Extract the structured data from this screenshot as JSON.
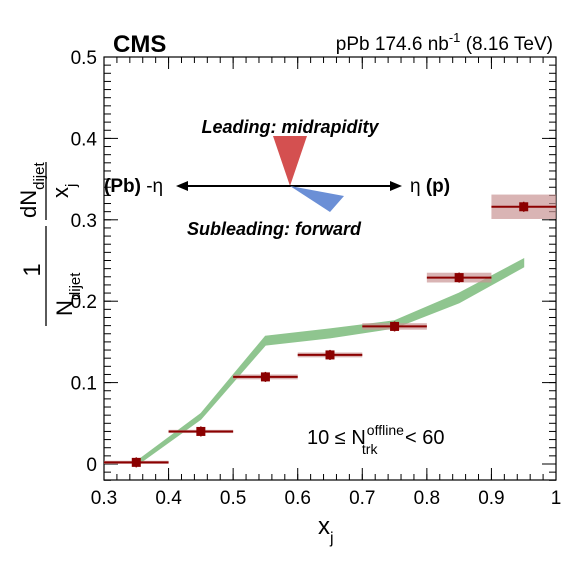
{
  "chart_data": {
    "type": "scatter",
    "experiment_label": "CMS",
    "run_label": {
      "prefix": "pPb 174.6 nb",
      "exponent": "-1",
      "suffix": "(8.16 TeV)"
    },
    "xlabel": {
      "base": "x",
      "sub": "j"
    },
    "ylabel": {
      "one": "1",
      "num_base": "dN",
      "num_sub": "dijet",
      "den_base": "x",
      "den_sub": "j",
      "norm_base": "N",
      "norm_sub": "dijet"
    },
    "xlim": [
      0.3,
      1.0
    ],
    "ylim": [
      -0.02,
      0.5
    ],
    "x_ticks": [
      0.3,
      0.4,
      0.5,
      0.6,
      0.7,
      0.8,
      0.9,
      1.0
    ],
    "x_tick_labels": [
      "0.3",
      "0.4",
      "0.5",
      "0.6",
      "0.7",
      "0.8",
      "0.9",
      "1"
    ],
    "y_ticks": [
      0,
      0.1,
      0.2,
      0.3,
      0.4,
      0.5
    ],
    "y_tick_labels": [
      "0",
      "0.1",
      "0.2",
      "0.3",
      "0.4",
      "0.5"
    ],
    "grid": false,
    "series": [
      {
        "kind": "data-points",
        "color": "#8b0000",
        "syst_color": "#c99494",
        "bin_halfwidth": 0.05,
        "points": [
          {
            "x": 0.35,
            "y": 0.002,
            "syst": 0.002
          },
          {
            "x": 0.45,
            "y": 0.04,
            "syst": 0.002
          },
          {
            "x": 0.55,
            "y": 0.107,
            "syst": 0.003
          },
          {
            "x": 0.65,
            "y": 0.134,
            "syst": 0.003
          },
          {
            "x": 0.75,
            "y": 0.169,
            "syst": 0.004
          },
          {
            "x": 0.85,
            "y": 0.229,
            "syst": 0.006
          },
          {
            "x": 0.95,
            "y": 0.316,
            "syst": 0.015
          }
        ]
      },
      {
        "kind": "model-band",
        "color": "#8fc58f",
        "points": [
          {
            "x": 0.35,
            "lo": -0.002,
            "hi": 0.003
          },
          {
            "x": 0.45,
            "lo": 0.055,
            "hi": 0.062
          },
          {
            "x": 0.55,
            "lo": 0.146,
            "hi": 0.157
          },
          {
            "x": 0.65,
            "lo": 0.155,
            "hi": 0.166
          },
          {
            "x": 0.75,
            "lo": 0.167,
            "hi": 0.176
          },
          {
            "x": 0.85,
            "lo": 0.198,
            "hi": 0.21
          },
          {
            "x": 0.95,
            "lo": 0.242,
            "hi": 0.252
          }
        ]
      }
    ],
    "annotations": {
      "leading": {
        "text": "Leading: midrapidity",
        "color": "#d45050"
      },
      "subleading": {
        "text": "Subleading: forward",
        "color": "#6b8fd6"
      },
      "left_axis_label": {
        "part1": "(Pb)",
        "part2": " -η"
      },
      "right_axis_label": {
        "part1": "η ",
        "part2": "(p)"
      },
      "ntrk_cut": {
        "prefix": "10 ≤ N",
        "sup": "offline",
        "sub": "trk",
        "suffix": " < 60"
      }
    }
  }
}
